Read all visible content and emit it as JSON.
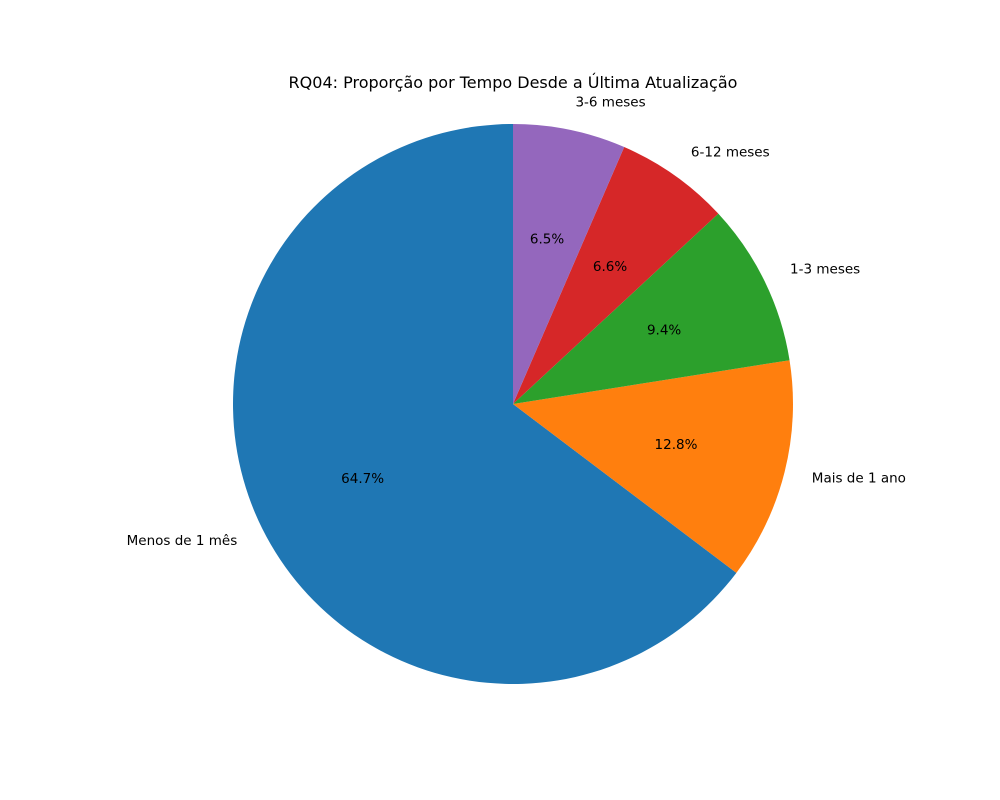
{
  "chart_data": {
    "type": "pie",
    "title": "RQ04: Proporção por Tempo Desde a Última Atualização",
    "start_angle_deg": 90,
    "direction": "counterclockwise",
    "slices": [
      {
        "label": "Menos de 1 mês",
        "value": 64.7,
        "pct_label": "64.7%",
        "color": "#1f77b4"
      },
      {
        "label": "Mais de 1 ano",
        "value": 12.8,
        "pct_label": "12.8%",
        "color": "#ff7f0e"
      },
      {
        "label": "1-3 meses",
        "value": 9.4,
        "pct_label": "9.4%",
        "color": "#2ca02c"
      },
      {
        "label": "6-12 meses",
        "value": 6.6,
        "pct_label": "6.6%",
        "color": "#d62728"
      },
      {
        "label": "3-6 meses",
        "value": 6.5,
        "pct_label": "6.5%",
        "color": "#9467bd"
      }
    ]
  }
}
